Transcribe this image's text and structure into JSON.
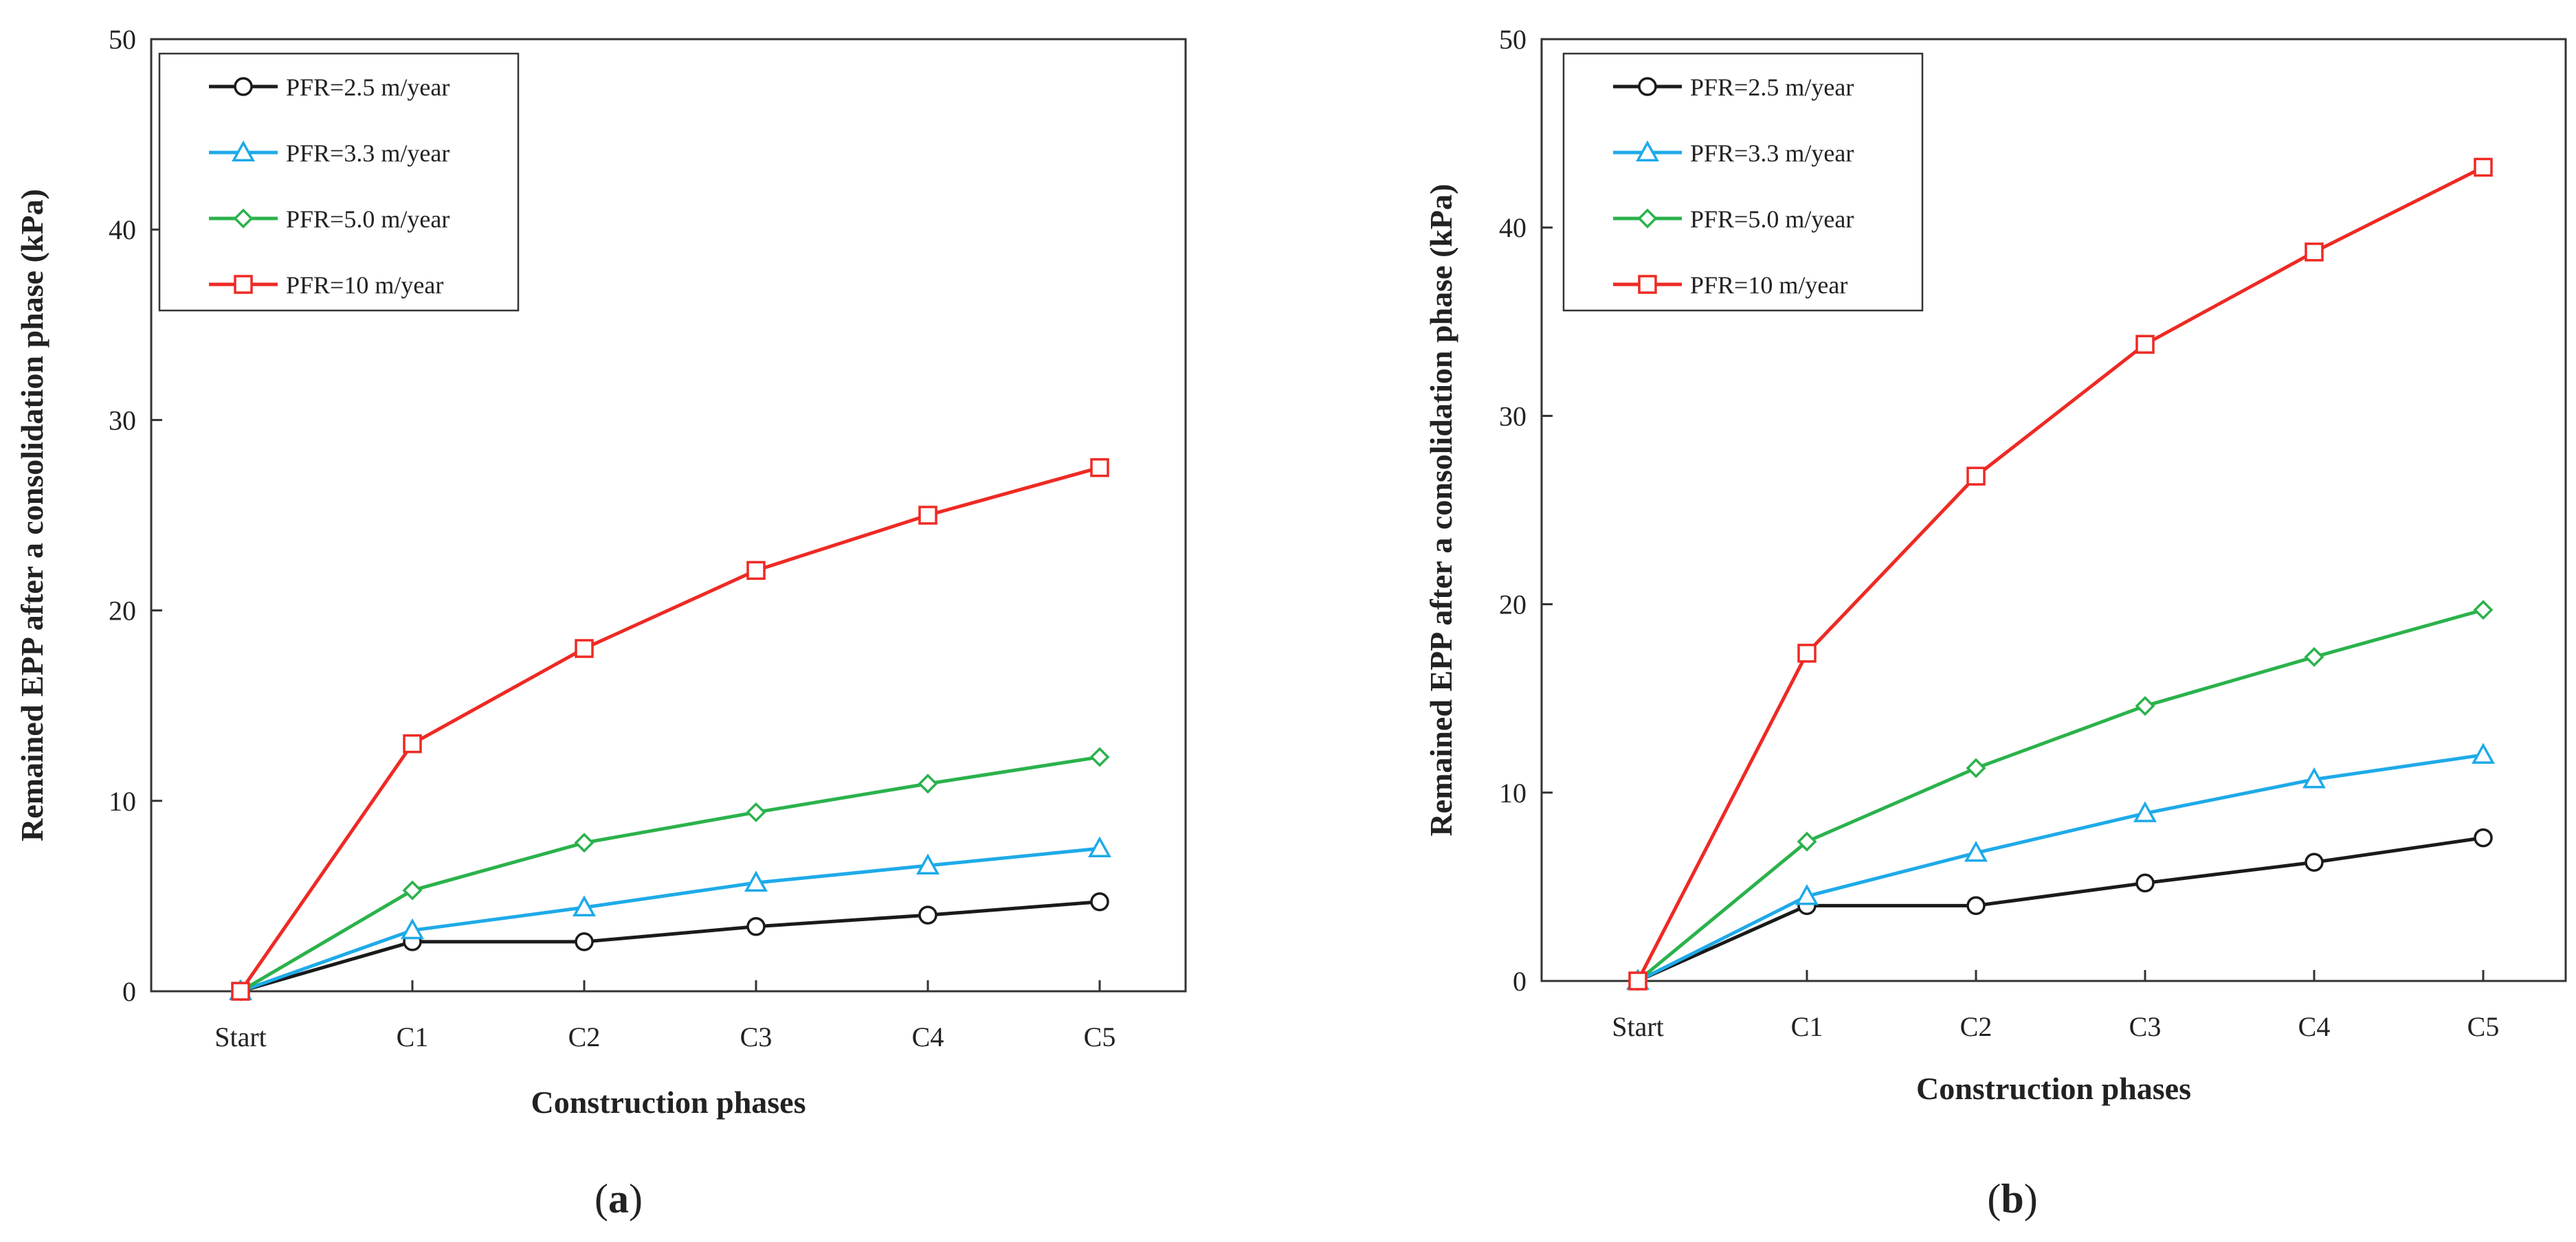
{
  "chart_data": [
    {
      "type": "line",
      "panel_label": "a",
      "xlabel": "Construction phases",
      "ylabel": "Remained EPP after a consolidation phase (kPa)",
      "categories": [
        "Start",
        "C1",
        "C2",
        "C3",
        "C4",
        "C5"
      ],
      "ylim": [
        0,
        50
      ],
      "yticks": [
        0,
        10,
        20,
        30,
        40,
        50
      ],
      "legend_position": "top-left",
      "series": [
        {
          "name": "PFR=2.5 m/year",
          "color": "#1a1a1a",
          "marker": "circle",
          "values": [
            0,
            2.6,
            2.6,
            3.4,
            4.0,
            4.7
          ]
        },
        {
          "name": "PFR=3.3 m/year",
          "color": "#1eaae8",
          "marker": "triangle",
          "values": [
            0,
            3.2,
            4.4,
            5.7,
            6.6,
            7.5
          ]
        },
        {
          "name": "PFR=5.0 m/year",
          "color": "#2bb24c",
          "marker": "diamond",
          "values": [
            0,
            5.3,
            7.8,
            9.4,
            10.9,
            12.3
          ]
        },
        {
          "name": "PFR=10 m/year",
          "color": "#ee2a24",
          "marker": "square",
          "values": [
            0,
            13.0,
            18.0,
            22.1,
            25.0,
            27.5
          ]
        }
      ]
    },
    {
      "type": "line",
      "panel_label": "b",
      "xlabel": "Construction phases",
      "ylabel": "Remained EPP after a consolidation phase (kPa)",
      "categories": [
        "Start",
        "C1",
        "C2",
        "C3",
        "C4",
        "C5"
      ],
      "ylim": [
        0,
        50
      ],
      "yticks": [
        0,
        10,
        20,
        30,
        40,
        50
      ],
      "legend_position": "top-left",
      "series": [
        {
          "name": "PFR=2.5 m/year",
          "color": "#1a1a1a",
          "marker": "circle",
          "values": [
            0,
            4.0,
            4.0,
            5.2,
            6.3,
            7.6
          ]
        },
        {
          "name": "PFR=3.3 m/year",
          "color": "#1eaae8",
          "marker": "triangle",
          "values": [
            0,
            4.5,
            6.8,
            8.9,
            10.7,
            12.0
          ]
        },
        {
          "name": "PFR=5.0 m/year",
          "color": "#2bb24c",
          "marker": "diamond",
          "values": [
            0,
            7.4,
            11.3,
            14.6,
            17.2,
            19.7
          ]
        },
        {
          "name": "PFR=10 m/year",
          "color": "#ee2a24",
          "marker": "square",
          "values": [
            0,
            17.4,
            26.8,
            33.8,
            38.7,
            43.2
          ]
        }
      ]
    }
  ]
}
